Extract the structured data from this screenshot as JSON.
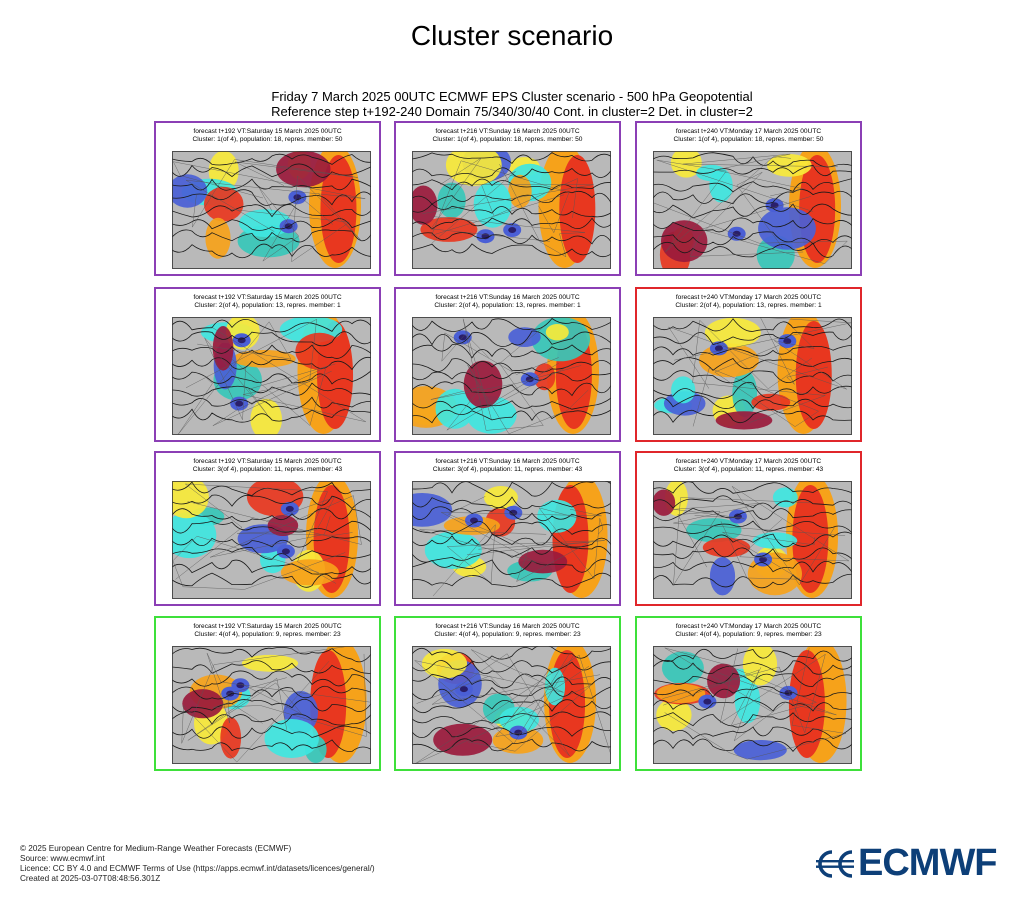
{
  "page_title": "Cluster scenario",
  "figure_title": {
    "line1": "Friday 7 March 2025 00UTC ECMWF EPS Cluster scenario - 500 hPa Geopotential",
    "line2": "Reference step t+192-240 Domain 75/340/30/40 Cont. in cluster=2 Det. in cluster=2"
  },
  "colors": {
    "purple": "#8b3fb5",
    "red": "#e0262b",
    "green": "#3ee03a",
    "logo": "#0d3f78"
  },
  "panels": [
    {
      "line1": "forecast t+192 VT:Saturday 15 March 2025 00UTC",
      "line2": "Cluster: 1(of 4), population: 18, repres. member: 50",
      "frame": "purple"
    },
    {
      "line1": "forecast t+216 VT:Sunday 16 March 2025 00UTC",
      "line2": "Cluster: 1(of 4), population: 18, repres. member: 50",
      "frame": "purple"
    },
    {
      "line1": "forecast t+240 VT:Monday 17 March 2025 00UTC",
      "line2": "Cluster: 1(of 4), population: 18, repres. member: 50",
      "frame": "purple"
    },
    {
      "line1": "forecast t+192 VT:Saturday 15 March 2025 00UTC",
      "line2": "Cluster: 2(of 4), population: 13, repres. member: 1",
      "frame": "purple"
    },
    {
      "line1": "forecast t+216 VT:Sunday 16 March 2025 00UTC",
      "line2": "Cluster: 2(of 4), population: 13, repres. member: 1",
      "frame": "purple"
    },
    {
      "line1": "forecast t+240 VT:Monday 17 March 2025 00UTC",
      "line2": "Cluster: 2(of 4), population: 13, repres. member: 1",
      "frame": "red"
    },
    {
      "line1": "forecast t+192 VT:Saturday 15 March 2025 00UTC",
      "line2": "Cluster: 3(of 4), population: 11, repres. member: 43",
      "frame": "purple"
    },
    {
      "line1": "forecast t+216 VT:Sunday 16 March 2025 00UTC",
      "line2": "Cluster: 3(of 4), population: 11, repres. member: 43",
      "frame": "purple"
    },
    {
      "line1": "forecast t+240 VT:Monday 17 March 2025 00UTC",
      "line2": "Cluster: 3(of 4), population: 11, repres. member: 43",
      "frame": "red"
    },
    {
      "line1": "forecast t+192 VT:Saturday 15 March 2025 00UTC",
      "line2": "Cluster: 4(of 4), population: 9, repres. member: 23",
      "frame": "green"
    },
    {
      "line1": "forecast t+216 VT:Sunday 16 March 2025 00UTC",
      "line2": "Cluster: 4(of 4), population: 9, repres. member: 23",
      "frame": "green"
    },
    {
      "line1": "forecast t+240 VT:Monday 17 March 2025 00UTC",
      "line2": "Cluster: 4(of 4), population: 9, repres. member: 23",
      "frame": "green"
    }
  ],
  "footer": {
    "copyright": "© 2025 European Centre for Medium-Range Weather Forecasts (ECMWF)",
    "source": "Source: www.ecmwf.int",
    "licence": "Licence: CC BY 4.0 and ECMWF Terms of Use (https://apps.ecmwf.int/datasets/licences/general/)",
    "created": "Created at 2025-03-07T08:48:56.301Z"
  },
  "logo": {
    "text": "ECMWF",
    "icon": "ecmwf-logo-icon"
  }
}
